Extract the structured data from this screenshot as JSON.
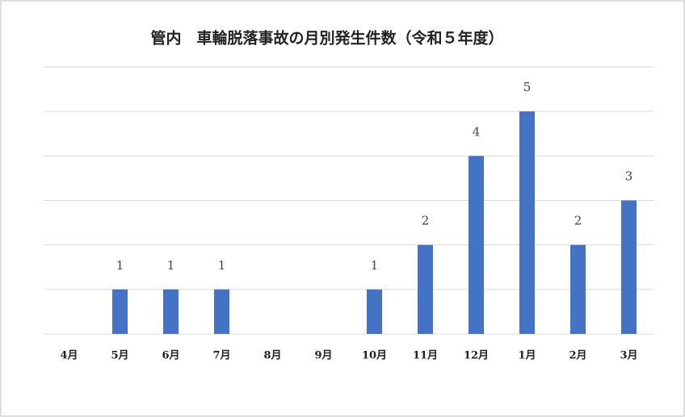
{
  "chart_data": {
    "type": "bar",
    "title": "管内　車輪脱落事故の月別発生件数（令和５年度）",
    "categories": [
      "4月",
      "5月",
      "6月",
      "7月",
      "8月",
      "9月",
      "10月",
      "11月",
      "12月",
      "1月",
      "2月",
      "3月"
    ],
    "values": [
      0,
      1,
      1,
      1,
      0,
      0,
      1,
      2,
      4,
      5,
      2,
      3
    ],
    "color": "#4472c4",
    "ylim": [
      0,
      6
    ],
    "yticks": [
      0,
      1,
      2,
      3,
      4,
      5,
      6
    ],
    "grid": true,
    "ytick_labels": false,
    "data_labels": true
  }
}
